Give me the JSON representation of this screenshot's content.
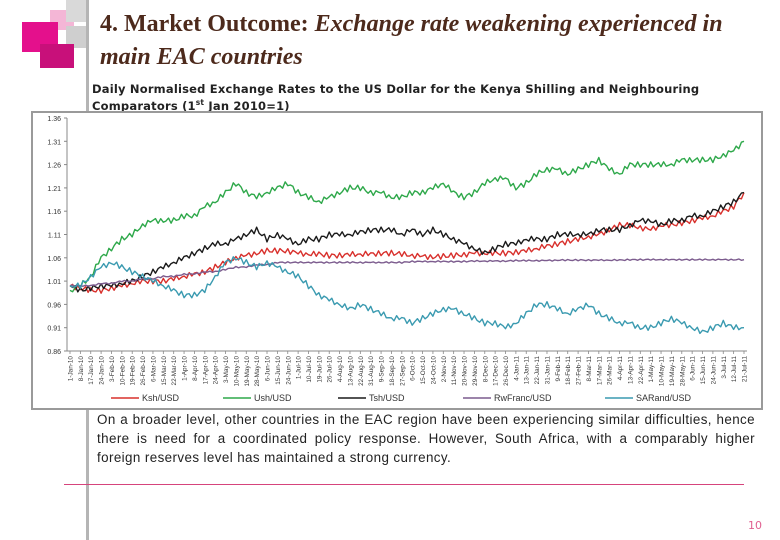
{
  "slide": {
    "title_prefix": "4. Market Outcome:",
    "title_rest": "Exchange rate  weakening experienced in main EAC countries",
    "subtitle": "Daily Normalised Exchange Rates to the US Dollar for the Kenya Shilling and Neighbouring Comparators (1",
    "subtitle_sup": "st",
    "subtitle_end": " Jan 2010=1)",
    "body": "On a broader level, other countries in the EAC region have been experiencing similar difficulties, hence there is need for a coordinated policy response. However, South Africa, with a comparably higher foreign reserves level has maintained a strong currency.",
    "page_number": "10"
  },
  "chart_data": {
    "type": "line",
    "title": "Daily Normalised Exchange Rates to the US Dollar for the Kenya Shilling and Neighbouring Comparators (1st Jan 2010=1)",
    "xlabel": "",
    "ylabel": "",
    "ylim": [
      0.86,
      1.36
    ],
    "y_ticks": [
      "0.86",
      "0.91",
      "0.96",
      "1.01",
      "1.06",
      "1.11",
      "1.16",
      "1.21",
      "1.26",
      "1.31",
      "1.36"
    ],
    "x_ticks": [
      "1-Jan-10",
      "8-Jan-10",
      "17-Jan-10",
      "24-Jan-10",
      "3-Feb-10",
      "10-Feb-10",
      "19-Feb-10",
      "26-Feb-10",
      "6-Mar-10",
      "15-Mar-10",
      "22-Mar-10",
      "1-Apr-10",
      "8-Apr-10",
      "17-Apr-10",
      "24-Apr-10",
      "3-May-10",
      "10-May-10",
      "19-May-10",
      "28-May-10",
      "6-Jun-10",
      "15-Jun-10",
      "24-Jun-10",
      "1-Jul-10",
      "10-Jul-10",
      "19-Jul-10",
      "26-Jul-10",
      "4-Aug-10",
      "13-Aug-10",
      "22-Aug-10",
      "31-Aug-10",
      "9-Sep-10",
      "18-Sep-10",
      "27-Sep-10",
      "6-Oct-10",
      "15-Oct-10",
      "24-Oct-10",
      "2-Nov-10",
      "11-Nov-10",
      "20-Nov-10",
      "29-Nov-10",
      "8-Dec-10",
      "17-Dec-10",
      "26-Dec-10",
      "4-Jan-11",
      "13-Jan-11",
      "22-Jan-11",
      "31-Jan-11",
      "9-Feb-11",
      "18-Feb-11",
      "27-Feb-11",
      "8-Mar-11",
      "17-Mar-11",
      "26-Mar-11",
      "4-Apr-11",
      "13-Apr-11",
      "22-Apr-11",
      "1-May-11",
      "10-May-11",
      "19-May-11",
      "28-May-11",
      "6-Jun-11",
      "15-Jun-11",
      "24-Jun-11",
      "3-Jul-11",
      "12-Jul-11",
      "21-Jul-11"
    ],
    "legend_position": "bottom",
    "series": [
      {
        "name": "Ksh/USD",
        "color": "#d8302c",
        "values": [
          1.0,
          0.995,
          0.99,
          0.99,
          0.995,
          1.0,
          1.005,
          1.01,
          1.01,
          1.01,
          1.015,
          1.02,
          1.025,
          1.03,
          1.04,
          1.05,
          1.06,
          1.065,
          1.07,
          1.075,
          1.075,
          1.075,
          1.07,
          1.068,
          1.068,
          1.065,
          1.065,
          1.067,
          1.068,
          1.068,
          1.07,
          1.07,
          1.068,
          1.065,
          1.063,
          1.062,
          1.063,
          1.065,
          1.067,
          1.07,
          1.07,
          1.07,
          1.07,
          1.072,
          1.075,
          1.08,
          1.085,
          1.09,
          1.095,
          1.1,
          1.105,
          1.11,
          1.12,
          1.13,
          1.13,
          1.125,
          1.12,
          1.13,
          1.13,
          1.135,
          1.14,
          1.145,
          1.15,
          1.16,
          1.17,
          1.2
        ]
      },
      {
        "name": "Ush/USD",
        "color": "#2ea84a",
        "values": [
          0.99,
          1.0,
          1.02,
          1.06,
          1.08,
          1.1,
          1.11,
          1.13,
          1.14,
          1.14,
          1.14,
          1.15,
          1.15,
          1.17,
          1.18,
          1.2,
          1.22,
          1.2,
          1.19,
          1.2,
          1.21,
          1.22,
          1.2,
          1.19,
          1.18,
          1.19,
          1.2,
          1.21,
          1.21,
          1.2,
          1.2,
          1.19,
          1.19,
          1.2,
          1.2,
          1.21,
          1.22,
          1.2,
          1.19,
          1.2,
          1.22,
          1.23,
          1.23,
          1.21,
          1.22,
          1.24,
          1.25,
          1.25,
          1.24,
          1.25,
          1.26,
          1.27,
          1.25,
          1.24,
          1.26,
          1.26,
          1.26,
          1.26,
          1.26,
          1.27,
          1.27,
          1.27,
          1.27,
          1.28,
          1.29,
          1.31
        ]
      },
      {
        "name": "Tsh/USD",
        "color": "#1a1a1a",
        "values": [
          1.0,
          0.99,
          0.995,
          1.0,
          1.0,
          1.005,
          1.01,
          1.02,
          1.03,
          1.04,
          1.05,
          1.06,
          1.07,
          1.08,
          1.09,
          1.09,
          1.1,
          1.11,
          1.12,
          1.1,
          1.11,
          1.1,
          1.09,
          1.1,
          1.1,
          1.11,
          1.11,
          1.11,
          1.115,
          1.12,
          1.12,
          1.12,
          1.11,
          1.12,
          1.11,
          1.12,
          1.11,
          1.1,
          1.09,
          1.08,
          1.07,
          1.08,
          1.09,
          1.09,
          1.1,
          1.1,
          1.1,
          1.11,
          1.11,
          1.11,
          1.11,
          1.12,
          1.12,
          1.12,
          1.13,
          1.14,
          1.14,
          1.13,
          1.14,
          1.14,
          1.15,
          1.15,
          1.16,
          1.17,
          1.18,
          1.2
        ]
      },
      {
        "name": "RwFranc/USD",
        "color": "#7c5c8e",
        "values": [
          1.0,
          1.0,
          1.0,
          1.005,
          1.005,
          1.01,
          1.01,
          1.015,
          1.015,
          1.02,
          1.02,
          1.025,
          1.025,
          1.03,
          1.03,
          1.035,
          1.04,
          1.04,
          1.045,
          1.045,
          1.05,
          1.05,
          1.05,
          1.05,
          1.05,
          1.05,
          1.05,
          1.05,
          1.05,
          1.05,
          1.05,
          1.05,
          1.05,
          1.052,
          1.052,
          1.052,
          1.052,
          1.052,
          1.052,
          1.053,
          1.053,
          1.053,
          1.053,
          1.054,
          1.054,
          1.054,
          1.054,
          1.055,
          1.055,
          1.055,
          1.055,
          1.055,
          1.055,
          1.055,
          1.056,
          1.056,
          1.056,
          1.056,
          1.056,
          1.056,
          1.056,
          1.056,
          1.056,
          1.056,
          1.056,
          1.056
        ]
      },
      {
        "name": "SARand/USD",
        "color": "#3a9ab0",
        "values": [
          1.0,
          1.0,
          1.02,
          1.04,
          1.05,
          1.04,
          1.03,
          1.02,
          1.01,
          1.0,
          0.99,
          0.98,
          0.98,
          0.99,
          1.02,
          1.05,
          1.06,
          1.05,
          1.04,
          1.05,
          1.04,
          1.03,
          1.02,
          1.0,
          0.98,
          0.97,
          0.96,
          0.95,
          0.96,
          0.95,
          0.94,
          0.93,
          0.93,
          0.92,
          0.93,
          0.94,
          0.95,
          0.95,
          0.94,
          0.93,
          0.92,
          0.92,
          0.91,
          0.92,
          0.94,
          0.96,
          0.96,
          0.95,
          0.94,
          0.95,
          0.96,
          0.94,
          0.93,
          0.92,
          0.92,
          0.91,
          0.91,
          0.92,
          0.93,
          0.92,
          0.91,
          0.9,
          0.91,
          0.92,
          0.91,
          0.91
        ]
      }
    ]
  }
}
